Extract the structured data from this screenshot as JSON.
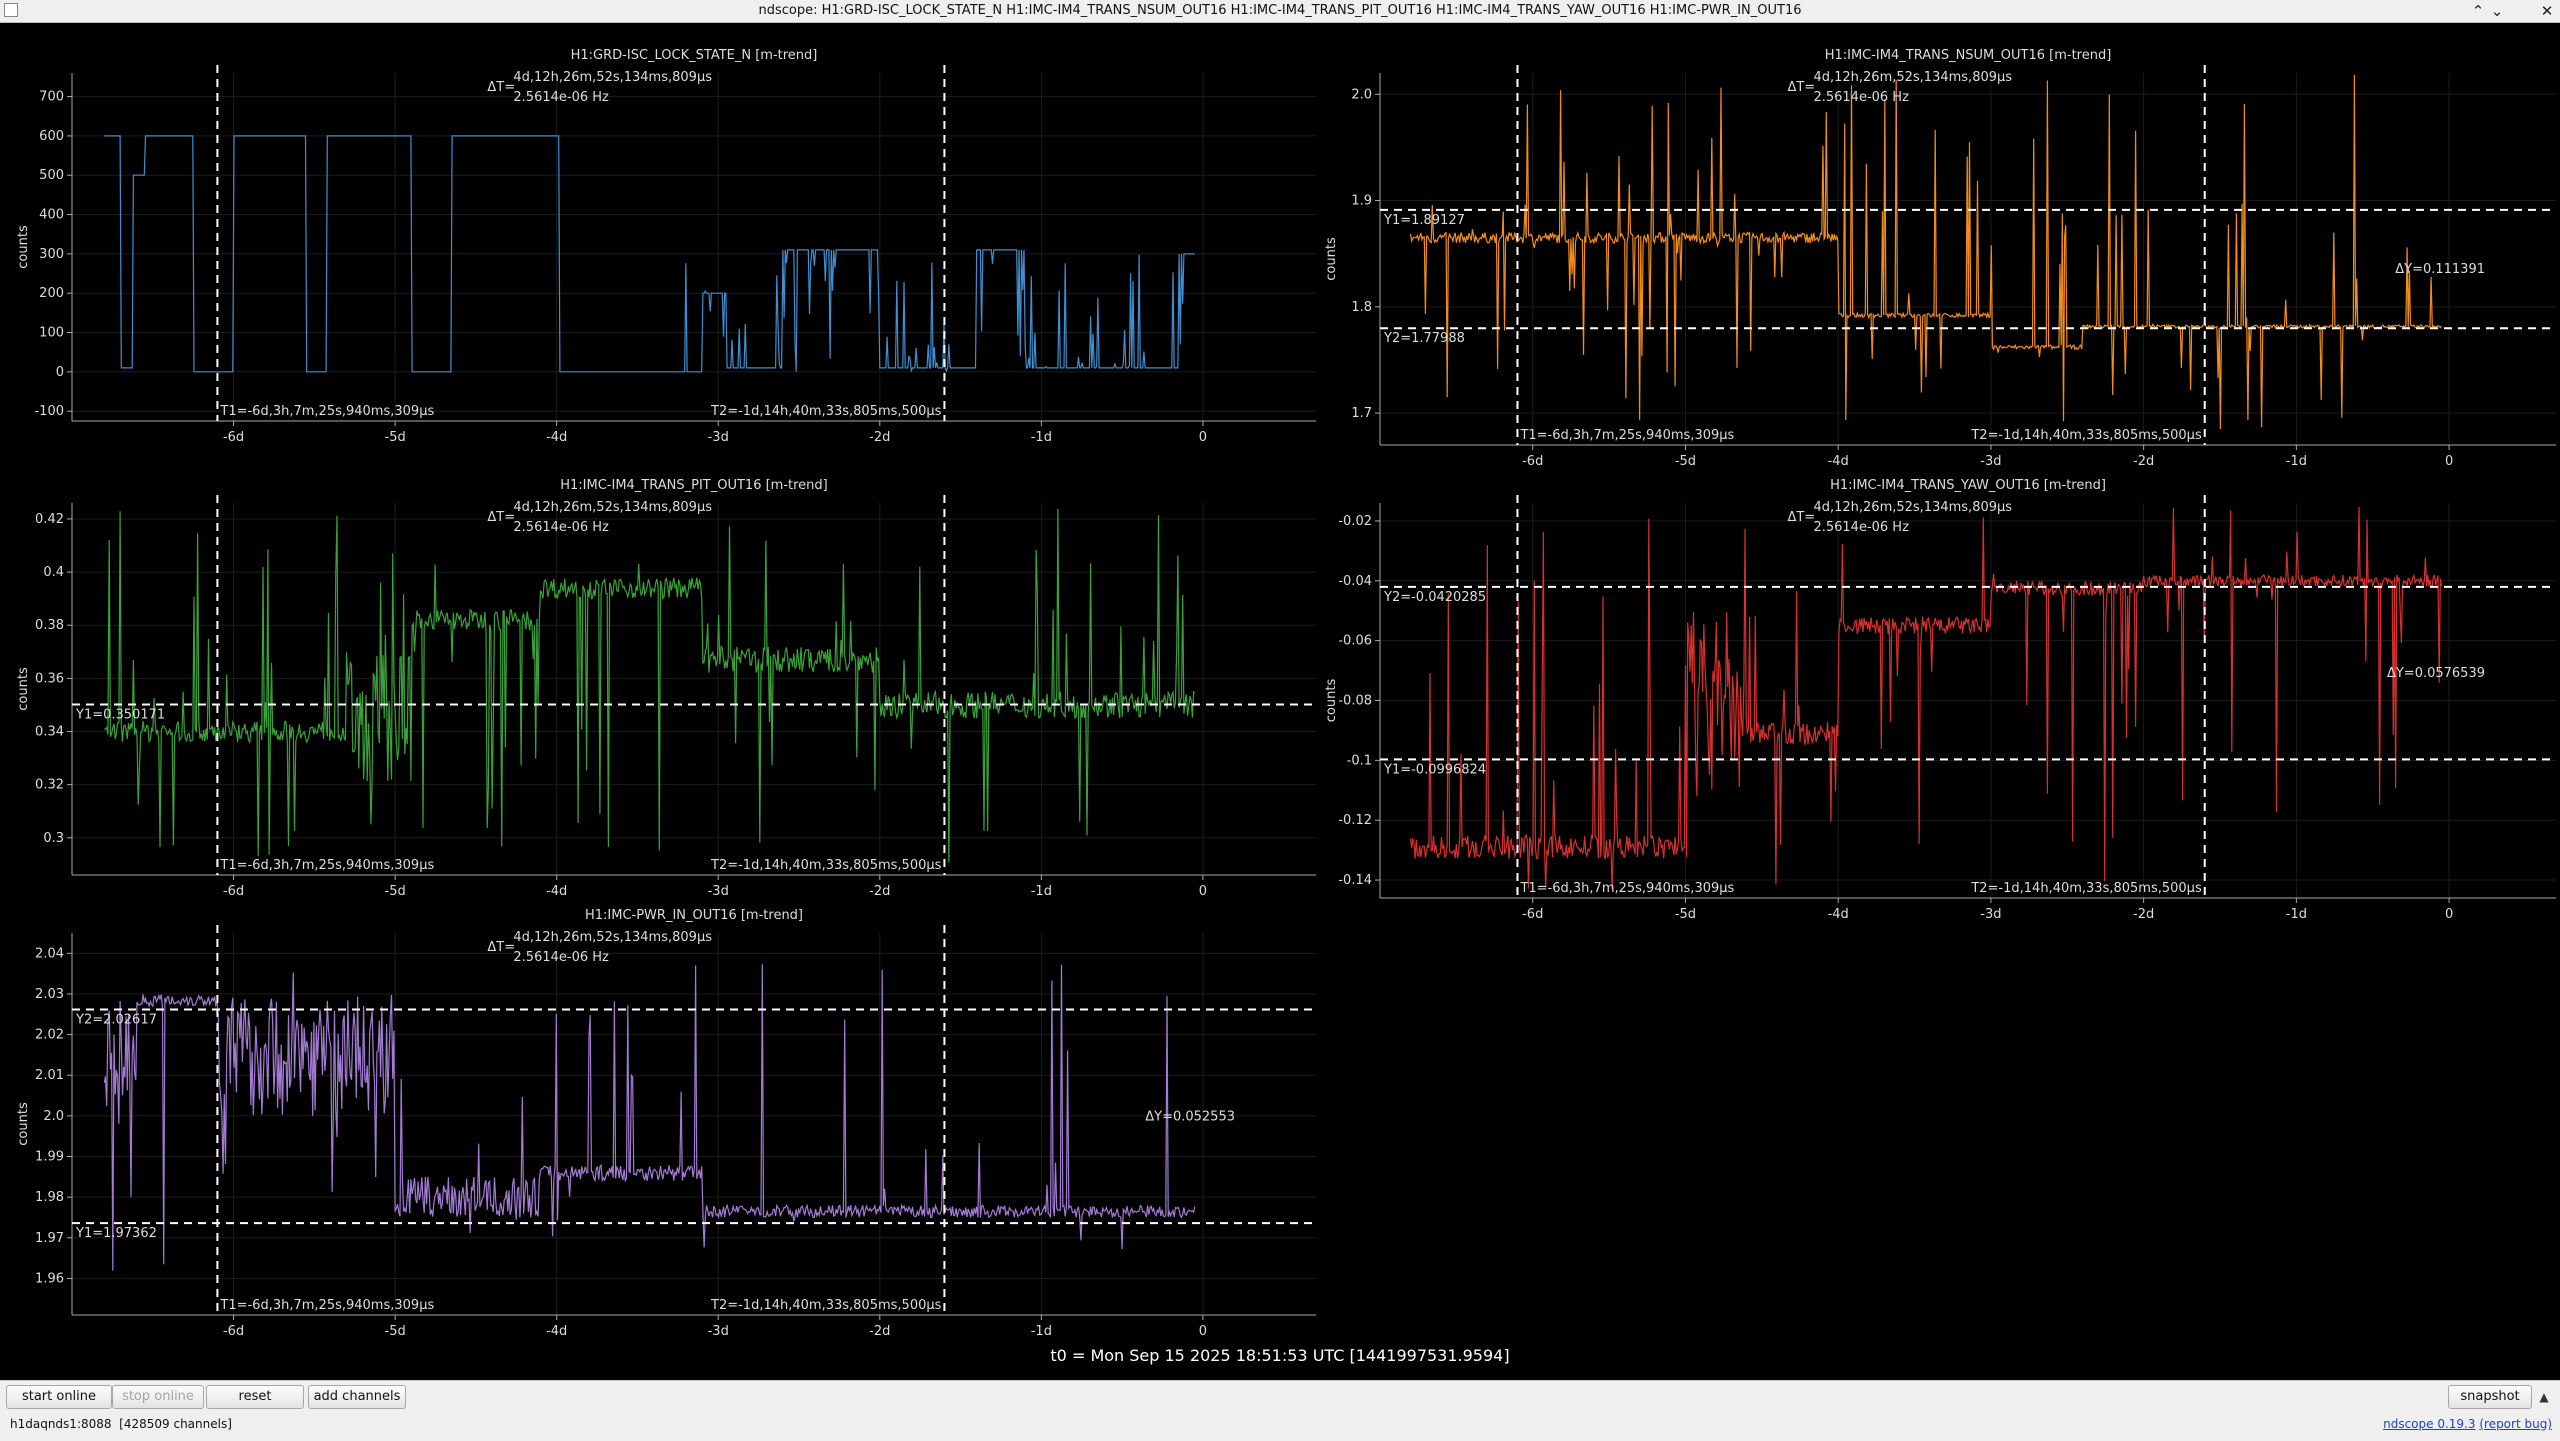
{
  "window": {
    "title": "ndscope: H1:GRD-ISC_LOCK_STATE_N H1:IMC-IM4_TRANS_NSUM_OUT16 H1:IMC-IM4_TRANS_PIT_OUT16 H1:IMC-IM4_TRANS_YAW_OUT16 H1:IMC-PWR_IN_OUT16",
    "controls": {
      "minimize": "⌃",
      "maximize": "⌄",
      "close": "✕"
    }
  },
  "common": {
    "xticks": [
      -6,
      -5,
      -4,
      -3,
      -2,
      -1,
      0
    ],
    "xtick_labels": [
      "-6d",
      "-5d",
      "-4d",
      "-3d",
      "-2d",
      "-1d",
      "0"
    ],
    "delta_t_label": "ΔT=",
    "delta_t_value": "4d,12h,26m,52s,134ms,809µs",
    "delta_t_freq": "2.5614e-06 Hz",
    "t1_x": -6.1,
    "t2_x": -1.6,
    "t1_label": "T1=-6d,3h,7m,25s,940ms,309µs",
    "t2_label": "T2=-1d,14h,40m,33s,805ms,500µs",
    "ylabel": "counts"
  },
  "plots": [
    {
      "id": "lock",
      "title": "H1:GRD-ISC_LOCK_STATE_N [m-trend]",
      "color": "#3f8fd2",
      "ylim": [
        -125,
        760
      ],
      "yticks": [
        -100,
        0,
        100,
        200,
        300,
        400,
        500,
        600,
        700
      ],
      "ytick_labels": [
        "-100",
        "0",
        "100",
        "200",
        "300",
        "400",
        "500",
        "600",
        "700"
      ],
      "ycursors": []
    },
    {
      "id": "nsum",
      "title": "H1:IMC-IM4_TRANS_NSUM_OUT16 [m-trend]",
      "color": "#f28c1e",
      "ylim": [
        1.67,
        2.02
      ],
      "yticks": [
        1.7,
        1.8,
        1.9,
        2.0
      ],
      "ytick_labels": [
        "1.7",
        "1.8",
        "1.9",
        "2.0"
      ],
      "ycursors": [
        {
          "value": 1.89127,
          "label": "Y1=1.89127"
        },
        {
          "value": 1.77988,
          "label": "Y2=1.77988"
        }
      ],
      "delta_y": "ΔY=0.111391"
    },
    {
      "id": "pit",
      "title": "H1:IMC-IM4_TRANS_PIT_OUT16 [m-trend]",
      "color": "#3aa23a",
      "ylim": [
        0.286,
        0.426
      ],
      "yticks": [
        0.3,
        0.32,
        0.34,
        0.36,
        0.38,
        0.4,
        0.42
      ],
      "ytick_labels": [
        "0.3",
        "0.32",
        "0.34",
        "0.36",
        "0.38",
        "0.4",
        "0.42"
      ],
      "ycursors": [
        {
          "value": 0.350171,
          "label": "Y1=0.350171"
        }
      ]
    },
    {
      "id": "yaw",
      "title": "H1:IMC-IM4_TRANS_YAW_OUT16 [m-trend]",
      "color": "#d63030",
      "ylim": [
        -0.146,
        -0.014
      ],
      "yticks": [
        -0.14,
        -0.12,
        -0.1,
        -0.08,
        -0.06,
        -0.04,
        -0.02
      ],
      "ytick_labels": [
        "-0.14",
        "-0.12",
        "-0.1",
        "-0.08",
        "-0.06",
        "-0.04",
        "-0.02"
      ],
      "ycursors": [
        {
          "value": -0.0420285,
          "label": "Y2=-0.0420285"
        },
        {
          "value": -0.0996824,
          "label": "Y1=-0.0996824"
        }
      ],
      "delta_y": "ΔY=0.0576539"
    },
    {
      "id": "pwr",
      "title": "H1:IMC-PWR_IN_OUT16 [m-trend]",
      "color": "#a37ad4",
      "ylim": [
        1.951,
        2.045
      ],
      "yticks": [
        1.96,
        1.97,
        1.98,
        1.99,
        2.0,
        2.01,
        2.02,
        2.03,
        2.04
      ],
      "ytick_labels": [
        "1.96",
        "1.97",
        "1.98",
        "1.99",
        "2.0",
        "2.01",
        "2.02",
        "2.03",
        "2.04"
      ],
      "ycursors": [
        {
          "value": 2.02617,
          "label": "Y2=2.02617"
        },
        {
          "value": 1.97362,
          "label": "Y1=1.97362"
        }
      ],
      "delta_y": "ΔY=0.052553"
    }
  ],
  "t0": "t0 = Mon Sep 15 2025 18:51:53 UTC [1441997531.9594]",
  "buttons": {
    "start_online": "start online",
    "stop_online": "stop online",
    "reset": "reset",
    "add_channels": "add channels",
    "snapshot": "snapshot",
    "snapshot_menu": "▲"
  },
  "status": {
    "server": "h1daqnds1:8088",
    "channels": "[428509 channels]",
    "version": "ndscope 0.19.3",
    "report_bug": "(report bug)"
  }
}
